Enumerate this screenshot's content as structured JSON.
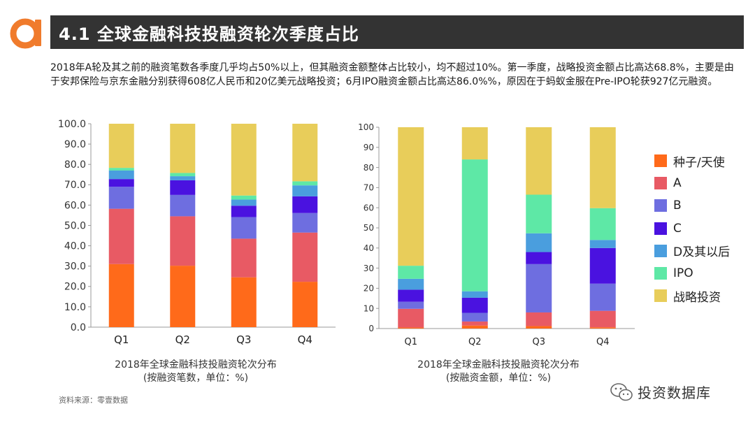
{
  "header": {
    "title": "4.1 全球金融科技投融资轮次季度占比"
  },
  "description": "2018年A轮及其之前的融资笔数各季度几乎均占50%以上，但其融资金额整体占比较小，均不超过10%。第一季度，战略投资金额占比高达68.8%，主要是由于安邦保险与京东金融分别获得608亿人民币和20亿美元战略投资；6月IPO融资金额占比高达86.0%%，原因在于蚂蚁金服在Pre-IPO轮获927亿元融资。",
  "source": "资料来源：零壹数据",
  "watermark": "投资数据库",
  "colors": {
    "种子/天使": "#ff6a1a",
    "A": "#e85a64",
    "B": "#6e6ee0",
    "C": "#4a12e0",
    "D及其以后": "#4a9ede",
    "IPO": "#5ee8a6",
    "战略投资": "#e8cd5a"
  },
  "legend": [
    "种子/天使",
    "A",
    "B",
    "C",
    "D及其以后",
    "IPO",
    "战略投资"
  ],
  "chart_data": [
    {
      "type": "bar",
      "stacked": true,
      "categories": [
        "Q1",
        "Q2",
        "Q3",
        "Q4"
      ],
      "ylim": [
        0,
        100
      ],
      "yticks": [
        "0.0",
        "10.0",
        "20.0",
        "30.0",
        "40.0",
        "50.0",
        "60.0",
        "70.0",
        "80.0",
        "90.0",
        "100.0"
      ],
      "caption_line1": "2018年全球金融科技投融资轮次分布",
      "caption_line2": "(按融资笔数，单位：%)",
      "series": [
        {
          "name": "种子/天使",
          "values": [
            31.0,
            30.2,
            24.5,
            22.3
          ]
        },
        {
          "name": "A",
          "values": [
            27.2,
            24.3,
            19.0,
            24.2
          ]
        },
        {
          "name": "B",
          "values": [
            10.8,
            10.5,
            10.6,
            9.6
          ]
        },
        {
          "name": "C",
          "values": [
            3.8,
            7.2,
            5.6,
            8.2
          ]
        },
        {
          "name": "D及其以后",
          "values": [
            4.2,
            2.0,
            3.0,
            5.4
          ]
        },
        {
          "name": "IPO",
          "values": [
            1.3,
            1.6,
            2.0,
            2.0
          ]
        },
        {
          "name": "战略投资",
          "values": [
            21.7,
            24.2,
            35.3,
            28.3
          ]
        }
      ]
    },
    {
      "type": "bar",
      "stacked": true,
      "categories": [
        "Q1",
        "Q2",
        "Q3",
        "Q4"
      ],
      "ylim": [
        0,
        100
      ],
      "yticks": [
        "0",
        "10",
        "20",
        "30",
        "40",
        "50",
        "60",
        "70",
        "80",
        "90",
        "100"
      ],
      "caption_line1": "2018年全球金融科技投融资轮次分布",
      "caption_line2": "(按融资金额，单位：%)",
      "series": [
        {
          "name": "种子/天使",
          "values": [
            0.5,
            1.5,
            1.2,
            0.6
          ]
        },
        {
          "name": "A",
          "values": [
            9.3,
            2.0,
            6.8,
            8.2
          ]
        },
        {
          "name": "B",
          "values": [
            3.5,
            4.3,
            24.0,
            13.5
          ]
        },
        {
          "name": "C",
          "values": [
            6.0,
            7.5,
            6.0,
            17.7
          ]
        },
        {
          "name": "D及其以后",
          "values": [
            5.4,
            3.2,
            9.3,
            4.0
          ]
        },
        {
          "name": "IPO",
          "values": [
            6.5,
            65.5,
            19.2,
            15.8
          ]
        },
        {
          "name": "战略投资",
          "values": [
            68.8,
            16.0,
            33.5,
            40.2
          ]
        }
      ]
    }
  ]
}
